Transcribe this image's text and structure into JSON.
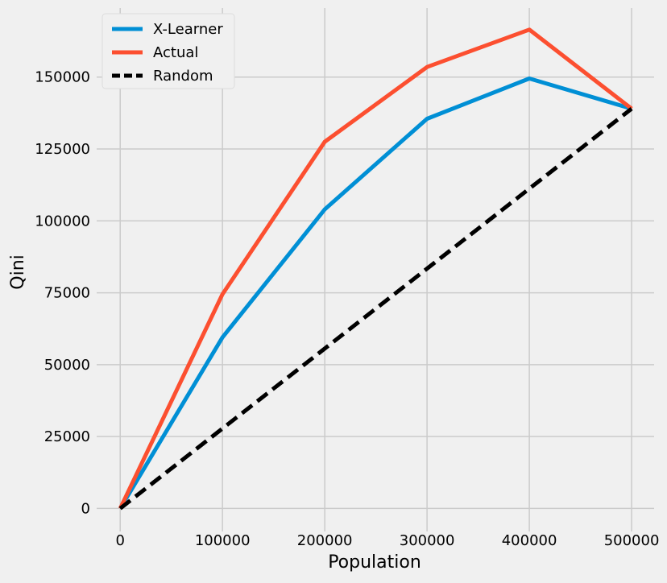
{
  "chart_data": {
    "type": "line",
    "title": "",
    "xlabel": "Population",
    "ylabel": "Qini",
    "xlim": [
      -23000,
      522000
    ],
    "ylim": [
      -8000,
      174000
    ],
    "xticks": [
      0,
      100000,
      200000,
      300000,
      400000,
      500000
    ],
    "xtick_labels": [
      "0",
      "100000",
      "200000",
      "300000",
      "400000",
      "500000"
    ],
    "yticks": [
      0,
      25000,
      50000,
      75000,
      100000,
      125000,
      150000
    ],
    "ytick_labels": [
      "0",
      "25000",
      "50000",
      "75000",
      "100000",
      "125000",
      "150000"
    ],
    "grid": true,
    "legend_position": "upper-left",
    "series": [
      {
        "name": "X-Learner",
        "color": "#008fd5",
        "style": "solid",
        "x": [
          0,
          100000,
          200000,
          300000,
          400000,
          500000
        ],
        "y": [
          0,
          59500,
          104000,
          135500,
          149500,
          139000
        ]
      },
      {
        "name": "Actual",
        "color": "#fc4f30",
        "style": "solid",
        "x": [
          0,
          100000,
          200000,
          300000,
          400000,
          500000
        ],
        "y": [
          0,
          74500,
          127500,
          153500,
          166500,
          139000
        ]
      },
      {
        "name": "Random",
        "color": "#000000",
        "style": "dashed",
        "x": [
          0,
          500000
        ],
        "y": [
          0,
          139000
        ]
      }
    ]
  }
}
